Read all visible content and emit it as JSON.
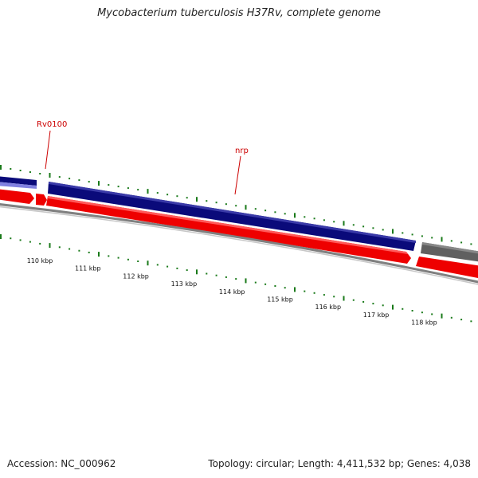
{
  "title": "Mycobacterium tuberculosis H37Rv, complete genome",
  "footer": {
    "accession": "Accession: NC_000962",
    "summary": "Topology: circular; Length: 4,411,532 bp; Genes: 4,038"
  },
  "gene_labels": [
    {
      "id": "rv0100",
      "text": "Rv0100"
    },
    {
      "id": "nrp",
      "text": "nrp"
    }
  ],
  "scale_labels": [
    "110 kbp",
    "111 kbp",
    "112 kbp",
    "113 kbp",
    "114 kbp",
    "115 kbp",
    "116 kbp",
    "117 kbp",
    "118 kbp"
  ],
  "colors": {
    "forward_track": "#0a0a7a",
    "forward_light": "#8080e0",
    "reverse_track": "#ee0000",
    "other_track": "#606060",
    "backbone": "#808080",
    "gc_ticks": "#1a7a1a",
    "label_red": "#cc0000",
    "scale_text": "#111111"
  }
}
